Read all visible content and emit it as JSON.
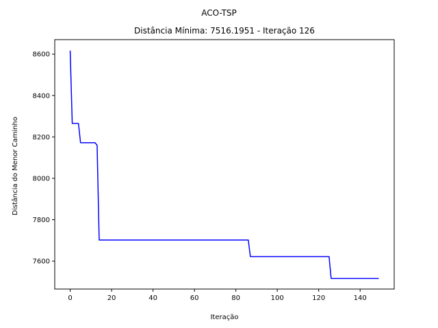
{
  "figure": {
    "suptitle": "ACO-TSP",
    "title": "Distância Mínima: 7516.1951 - Iteração 126"
  },
  "chart_data": {
    "type": "line",
    "xlabel": "Iteração",
    "ylabel": "Distância do Menor Caminho",
    "xlim": [
      -7.45,
      156.45
    ],
    "ylim": [
      7465,
      8670
    ],
    "xticks": [
      0,
      20,
      40,
      60,
      80,
      100,
      120,
      140
    ],
    "yticks": [
      7600,
      7800,
      8000,
      8200,
      8400,
      8600
    ],
    "grid": false,
    "legend": "none",
    "series": [
      {
        "color": "#0000ff",
        "x": [
          0,
          1,
          2,
          3,
          4,
          5,
          6,
          7,
          8,
          9,
          10,
          11,
          12,
          13,
          14,
          15,
          86,
          87,
          124,
          125,
          126,
          149
        ],
        "y": [
          8617,
          8265,
          8265,
          8265,
          8265,
          8172,
          8172,
          8172,
          8172,
          8172,
          8172,
          8172,
          8172,
          8160,
          7702,
          7702,
          7702,
          7622,
          7622,
          7622,
          7516.1951,
          7516.1951
        ]
      }
    ]
  }
}
